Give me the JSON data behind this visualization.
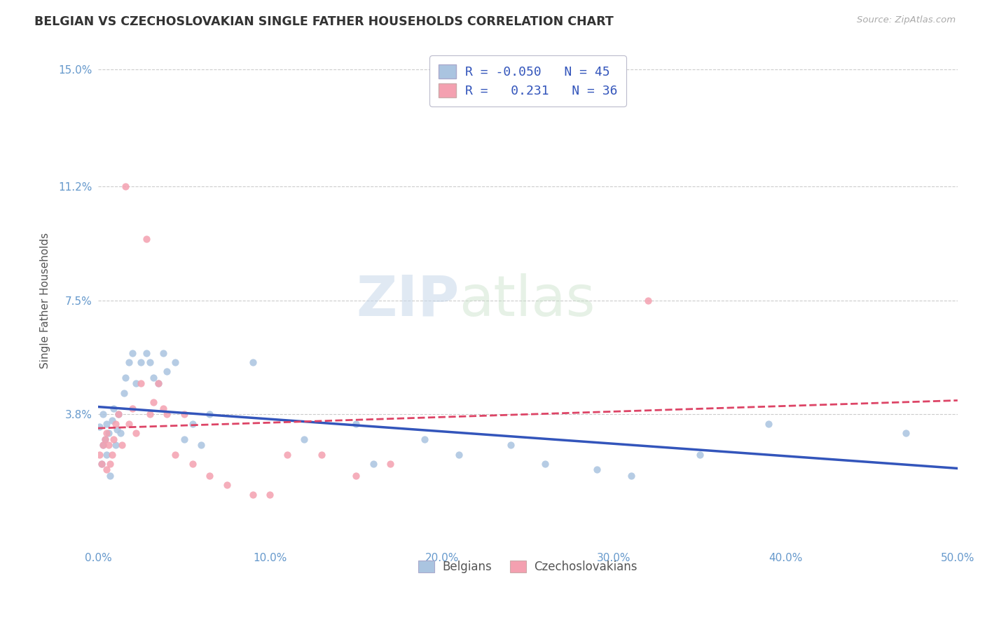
{
  "title": "BELGIAN VS CZECHOSLOVAKIAN SINGLE FATHER HOUSEHOLDS CORRELATION CHART",
  "source": "Source: ZipAtlas.com",
  "ylabel": "Single Father Households",
  "xlim": [
    0.0,
    0.5
  ],
  "ylim": [
    -0.005,
    0.155
  ],
  "yticks": [
    0.038,
    0.075,
    0.112,
    0.15
  ],
  "ytick_labels": [
    "3.8%",
    "7.5%",
    "11.2%",
    "15.0%"
  ],
  "xticks": [
    0.0,
    0.1,
    0.2,
    0.3,
    0.4,
    0.5
  ],
  "xtick_labels": [
    "0.0%",
    "10.0%",
    "20.0%",
    "30.0%",
    "40.0%",
    "50.0%"
  ],
  "background_color": "#ffffff",
  "grid_color": "#cccccc",
  "title_color": "#333333",
  "axis_label_color": "#555555",
  "tick_color": "#6699cc",
  "source_color": "#aaaaaa",
  "belgian_color": "#aac4e0",
  "czech_color": "#f4a0b0",
  "belgian_line_color": "#3355bb",
  "czech_line_color": "#dd4466",
  "legend_R1": "-0.050",
  "legend_N1": "45",
  "legend_R2": "0.231",
  "legend_N2": "36",
  "legend_label1": "Belgians",
  "legend_label2": "Czechoslovakians",
  "watermark_zip": "ZIP",
  "watermark_atlas": "atlas",
  "belgian_x": [
    0.001,
    0.002,
    0.003,
    0.003,
    0.004,
    0.005,
    0.005,
    0.006,
    0.007,
    0.008,
    0.009,
    0.01,
    0.011,
    0.012,
    0.013,
    0.015,
    0.016,
    0.018,
    0.02,
    0.022,
    0.025,
    0.028,
    0.03,
    0.032,
    0.035,
    0.038,
    0.04,
    0.045,
    0.05,
    0.055,
    0.06,
    0.065,
    0.09,
    0.12,
    0.15,
    0.16,
    0.19,
    0.21,
    0.24,
    0.26,
    0.29,
    0.31,
    0.35,
    0.39,
    0.47
  ],
  "belgian_y": [
    0.034,
    0.022,
    0.028,
    0.038,
    0.03,
    0.035,
    0.025,
    0.032,
    0.018,
    0.036,
    0.04,
    0.028,
    0.033,
    0.038,
    0.032,
    0.045,
    0.05,
    0.055,
    0.058,
    0.048,
    0.055,
    0.058,
    0.055,
    0.05,
    0.048,
    0.058,
    0.052,
    0.055,
    0.03,
    0.035,
    0.028,
    0.038,
    0.055,
    0.03,
    0.035,
    0.022,
    0.03,
    0.025,
    0.028,
    0.022,
    0.02,
    0.018,
    0.025,
    0.035,
    0.032
  ],
  "czech_x": [
    0.001,
    0.002,
    0.003,
    0.004,
    0.005,
    0.005,
    0.006,
    0.007,
    0.008,
    0.009,
    0.01,
    0.012,
    0.014,
    0.016,
    0.018,
    0.02,
    0.022,
    0.025,
    0.028,
    0.03,
    0.032,
    0.035,
    0.038,
    0.04,
    0.045,
    0.05,
    0.055,
    0.065,
    0.075,
    0.09,
    0.1,
    0.11,
    0.13,
    0.15,
    0.17,
    0.32
  ],
  "czech_y": [
    0.025,
    0.022,
    0.028,
    0.03,
    0.02,
    0.032,
    0.028,
    0.022,
    0.025,
    0.03,
    0.035,
    0.038,
    0.028,
    0.112,
    0.035,
    0.04,
    0.032,
    0.048,
    0.095,
    0.038,
    0.042,
    0.048,
    0.04,
    0.038,
    0.025,
    0.038,
    0.022,
    0.018,
    0.015,
    0.012,
    0.012,
    0.025,
    0.025,
    0.018,
    0.022,
    0.075
  ]
}
